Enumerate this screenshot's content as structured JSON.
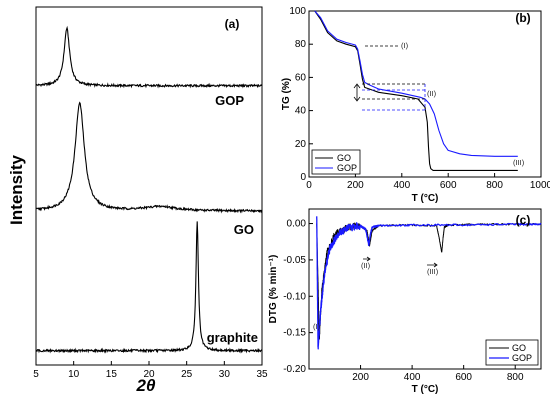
{
  "chart_data": [
    {
      "panel": "(a)",
      "type": "line",
      "xlabel": "2θ",
      "ylabel": "Intensity",
      "xlim": [
        5,
        35
      ],
      "x_ticks": [
        "5",
        "10",
        "15",
        "20",
        "25",
        "30",
        "35"
      ],
      "series": [
        {
          "name": "GOP",
          "color": "#000000",
          "baseline": 0.78,
          "peaks": [
            {
              "x": 9.1,
              "h": 0.16,
              "w": 0.45
            }
          ]
        },
        {
          "name": "GO",
          "color": "#000000",
          "baseline": 0.43,
          "peaks": [
            {
              "x": 10.8,
              "h": 0.3,
              "w": 0.75
            },
            {
              "x": 21.5,
              "h": 0.012,
              "w": 2.5
            }
          ]
        },
        {
          "name": "graphite",
          "color": "#000000",
          "baseline": 0.04,
          "peaks": [
            {
              "x": 26.4,
              "h": 0.36,
              "w": 0.2
            }
          ]
        }
      ]
    },
    {
      "panel": "(b)",
      "type": "line",
      "xlabel": "T (°C)",
      "ylabel": "TG (%)",
      "xlim": [
        0,
        1000
      ],
      "ylim": [
        0,
        100
      ],
      "x_ticks": [
        "0",
        "200",
        "400",
        "600",
        "800",
        "1000"
      ],
      "y_ticks": [
        "0",
        "20",
        "40",
        "60",
        "80",
        "100"
      ],
      "legend_position": "bottom-left",
      "annotations": [
        "(I)",
        "(II)",
        "(III)"
      ],
      "series": [
        {
          "name": "GO",
          "color": "#000000",
          "x": [
            25,
            50,
            80,
            120,
            160,
            200,
            210,
            220,
            230,
            240,
            260,
            300,
            400,
            470,
            500,
            510,
            515,
            520,
            525,
            535,
            600,
            800,
            900
          ],
          "y": [
            100,
            95,
            87,
            82,
            80,
            78.5,
            76,
            68,
            59,
            54,
            53,
            51,
            49,
            47,
            42,
            33,
            18,
            8,
            5,
            4,
            4,
            4,
            4
          ]
        },
        {
          "name": "GOP",
          "color": "#1a1aff",
          "x": [
            25,
            50,
            80,
            120,
            160,
            200,
            210,
            220,
            230,
            240,
            260,
            300,
            400,
            480,
            500,
            520,
            540,
            560,
            580,
            600,
            650,
            700,
            800,
            900
          ],
          "y": [
            100,
            96,
            88,
            83,
            81,
            79.5,
            77,
            70,
            62,
            57,
            55.5,
            53,
            50.5,
            48,
            47,
            44,
            38,
            28,
            20,
            16,
            14,
            13,
            12.5,
            12.5
          ]
        }
      ]
    },
    {
      "panel": "(c)",
      "type": "line",
      "xlabel": "T (°C)",
      "ylabel": "DTG (% min⁻¹)",
      "xlim": [
        0,
        900
      ],
      "ylim": [
        -0.2,
        0.02
      ],
      "x_ticks": [
        "200",
        "400",
        "600",
        "800"
      ],
      "y_ticks": [
        "0.00",
        "-0.05",
        "-0.10",
        "-0.15",
        "-0.20"
      ],
      "legend_position": "bottom-right",
      "annotations": [
        "(I)",
        "(II)",
        "(III)"
      ],
      "series": [
        {
          "name": "GO",
          "color": "#000000",
          "x": [
            30,
            40,
            50,
            70,
            100,
            150,
            200,
            225,
            235,
            245,
            270,
            400,
            495,
            505,
            515,
            520,
            525,
            540,
            700,
            900
          ],
          "y": [
            0.0,
            -0.16,
            -0.09,
            -0.04,
            -0.015,
            -0.005,
            -0.003,
            -0.01,
            -0.03,
            -0.01,
            -0.003,
            -0.002,
            -0.003,
            -0.02,
            -0.04,
            -0.02,
            -0.005,
            -0.002,
            -0.001,
            -0.001
          ]
        },
        {
          "name": "GOP",
          "color": "#1a1aff",
          "x": [
            30,
            35,
            45,
            60,
            80,
            110,
            150,
            200,
            220,
            232,
            238,
            245,
            270,
            400,
            600,
            800,
            900
          ],
          "y": [
            0.01,
            -0.17,
            -0.12,
            -0.07,
            -0.035,
            -0.015,
            -0.006,
            -0.003,
            -0.008,
            -0.03,
            -0.015,
            -0.005,
            -0.003,
            -0.002,
            -0.002,
            -0.001,
            -0.001
          ]
        }
      ]
    }
  ]
}
